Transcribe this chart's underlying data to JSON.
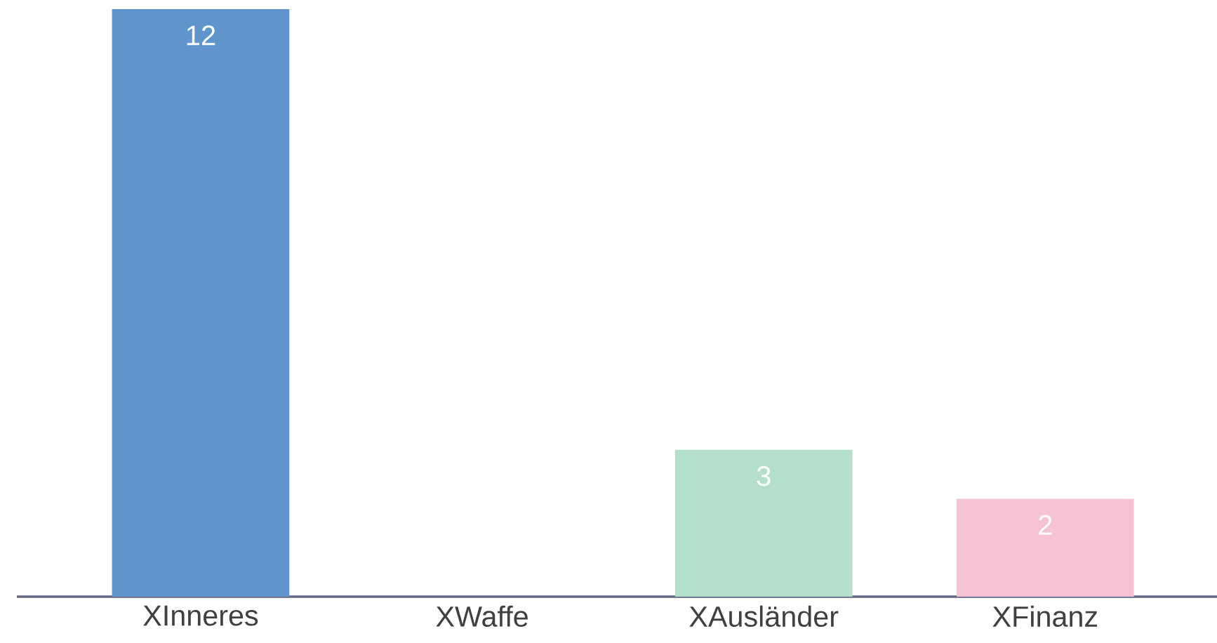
{
  "chart_data": {
    "type": "bar",
    "categories": [
      "XInneres",
      "XWaffe",
      "XAusländer",
      "XFinanz"
    ],
    "values": [
      12,
      0,
      3,
      2
    ],
    "colors": [
      "#6094cc",
      "#ffffff",
      "#b3dfcb",
      "#f6c3d6"
    ],
    "value_labels": [
      "12",
      null,
      "3",
      "2"
    ]
  }
}
